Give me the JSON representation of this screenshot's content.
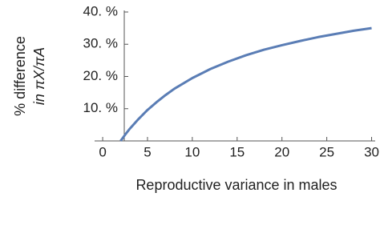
{
  "chart_data": {
    "type": "line",
    "xlabel": "Reproductive variance in males",
    "ylabel": [
      "% difference",
      "in πX/πA"
    ],
    "x": [
      2,
      2.5,
      3,
      4,
      5,
      6,
      7,
      8,
      10,
      12,
      14,
      16,
      18,
      20,
      22,
      24,
      26,
      28,
      30
    ],
    "series": [
      {
        "color": "#5a7db5",
        "values": [
          0,
          1.9,
          3.7,
          6.8,
          9.6,
          12.0,
          14.2,
          16.2,
          19.5,
          22.3,
          24.6,
          26.6,
          28.3,
          29.7,
          31.0,
          32.2,
          33.2,
          34.2,
          35.0
        ]
      }
    ],
    "xlim": [
      -0.9,
      30.4
    ],
    "ylim": [
      0,
      40.5
    ],
    "xticks": [
      0,
      5,
      10,
      15,
      20,
      25,
      30
    ],
    "yticks": [
      {
        "value": 10,
        "label": "10. %"
      },
      {
        "value": 20,
        "label": "20. %"
      },
      {
        "value": 30,
        "label": "30. %"
      },
      {
        "value": 40,
        "label": "40. %"
      }
    ]
  }
}
